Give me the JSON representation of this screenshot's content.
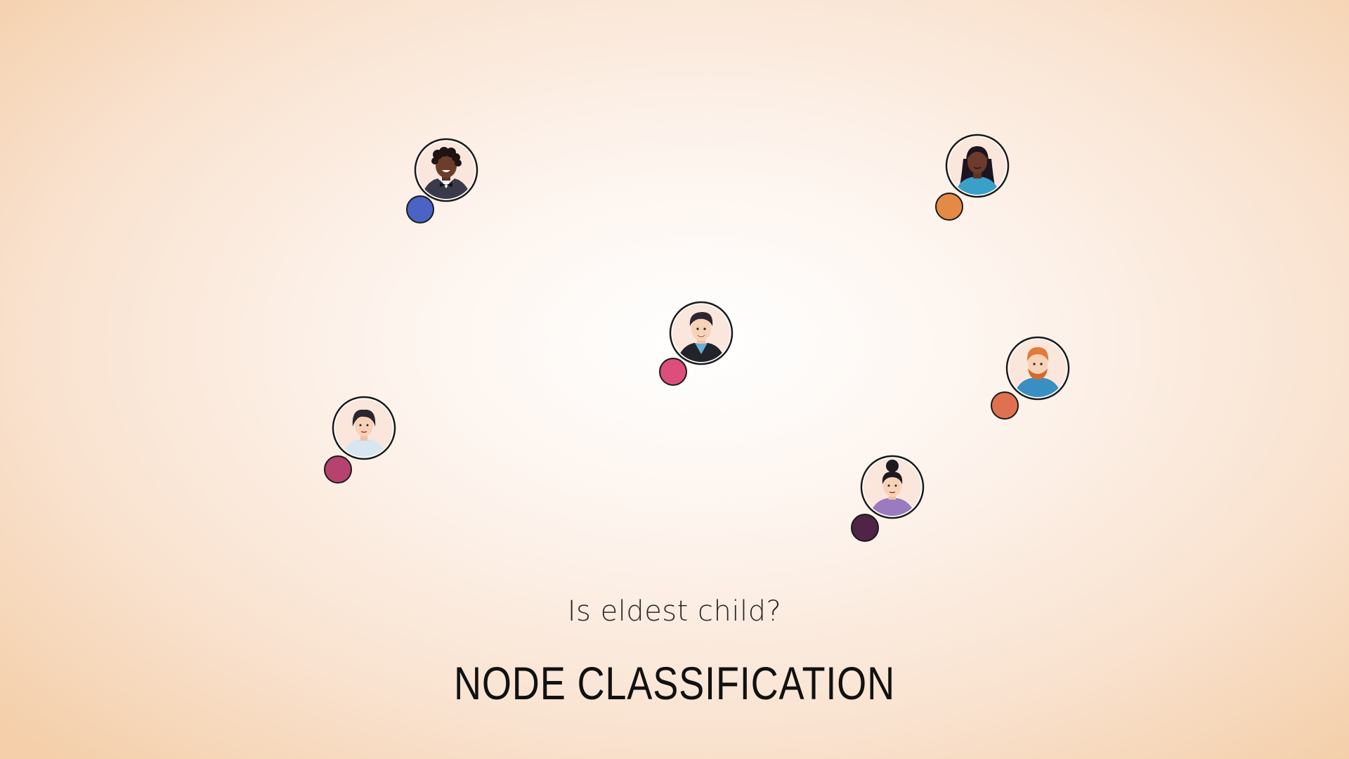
{
  "subtitle": "Is eldest child?",
  "title": "NODE CLASSIFICATION",
  "nodes": [
    {
      "id": "person-1",
      "avatar": "man-curly-hair-bowtie-icon",
      "label_color": "#4a63c4"
    },
    {
      "id": "person-2",
      "avatar": "woman-long-dark-hair-icon",
      "label_color": "#e58a45"
    },
    {
      "id": "person-3",
      "avatar": "man-dark-hair-jacket-icon",
      "label_color": "#dc4f7c"
    },
    {
      "id": "person-4",
      "avatar": "man-ginger-beard-icon",
      "label_color": "#e07150"
    },
    {
      "id": "person-5",
      "avatar": "woman-short-hair-icon",
      "label_color": "#b8426f"
    },
    {
      "id": "person-6",
      "avatar": "woman-hair-bun-icon",
      "label_color": "#4f2446"
    }
  ]
}
